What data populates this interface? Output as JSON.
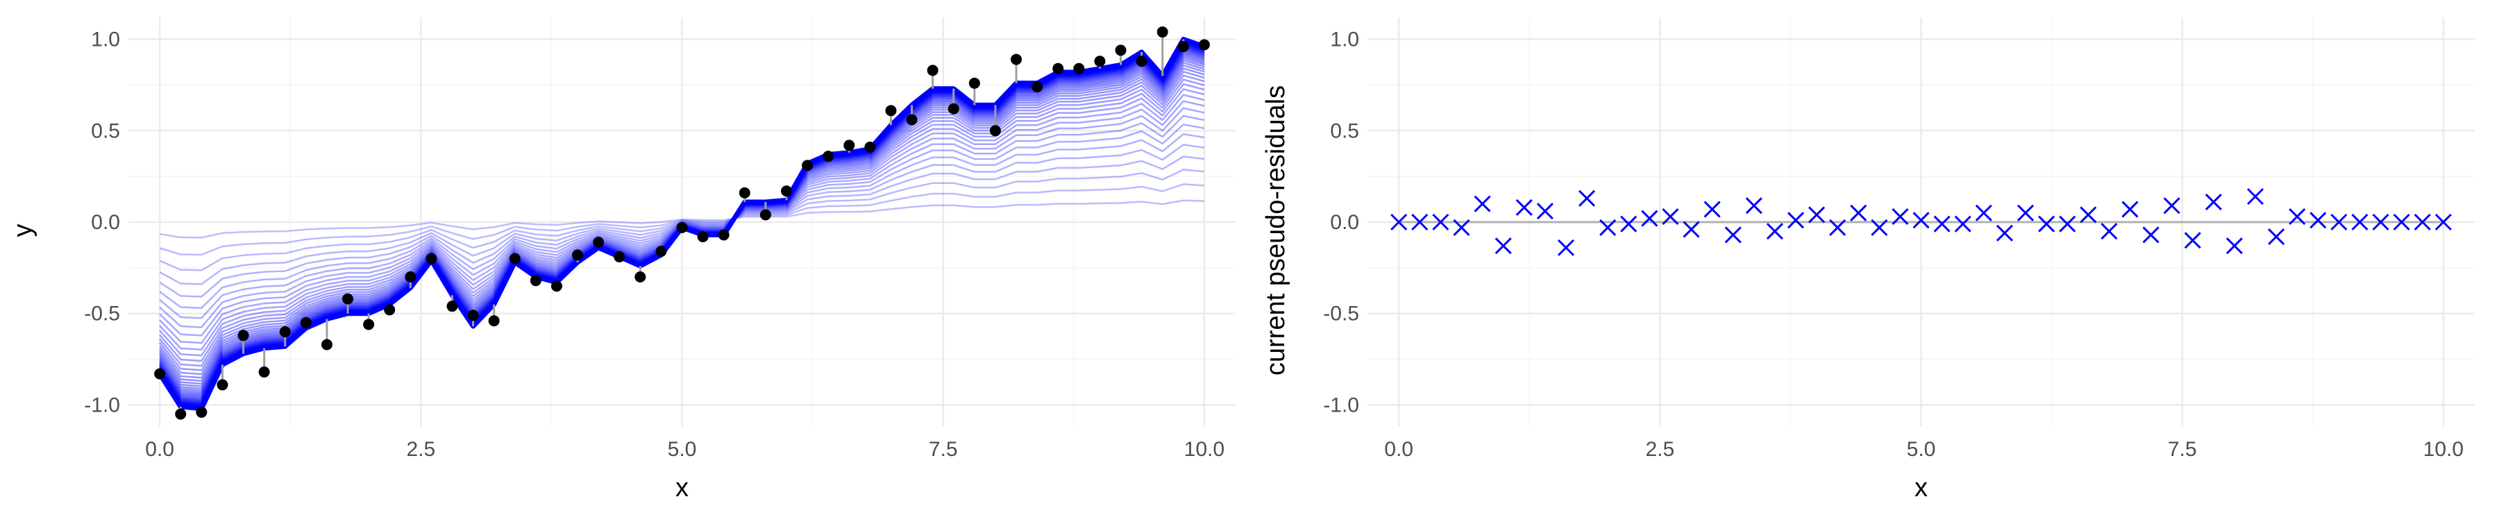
{
  "colors": {
    "background": "#ffffff",
    "grid_major": "#ebebeb",
    "grid_minor": "#f5f5f5",
    "fit_line": "#0000ff",
    "points": "#000000",
    "residual_segment": "#a0a0a0",
    "zero_line": "#b0b0b0",
    "residual_marker": "#0000ff"
  },
  "chart_data": [
    {
      "type": "line",
      "description_of_marks": "black observed points, grey vertical residual segments, blue boosting fit lines from iteration 1 (faint) to final (dark blue, thick)",
      "xlabel": "x",
      "ylabel": "y",
      "xlim": [
        -0.3,
        10.3
      ],
      "ylim": [
        -1.12,
        1.12
      ],
      "xticks": [
        0,
        2.5,
        5,
        7.5,
        10
      ],
      "xtick_labels": [
        "0.0",
        "2.5",
        "5.0",
        "7.5",
        "10.0"
      ],
      "yticks": [
        -1,
        -0.5,
        0,
        0.5,
        1
      ],
      "ytick_labels": [
        "-1.0",
        "-0.5",
        "0.0",
        "0.5",
        "1.0"
      ],
      "grid": true,
      "n_iterations": 50,
      "initial_fit": 0.02,
      "x": [
        0,
        0.2,
        0.4,
        0.6,
        0.8,
        1.0,
        1.2,
        1.4,
        1.6,
        1.8,
        2.0,
        2.2,
        2.4,
        2.6,
        2.8,
        3.0,
        3.2,
        3.4,
        3.6,
        3.8,
        4.0,
        4.2,
        4.4,
        4.6,
        4.8,
        5.0,
        5.2,
        5.4,
        5.6,
        5.8,
        6.0,
        6.2,
        6.4,
        6.6,
        6.8,
        7.0,
        7.2,
        7.4,
        7.6,
        7.8,
        8.0,
        8.2,
        8.4,
        8.6,
        8.8,
        9.0,
        9.2,
        9.4,
        9.6,
        9.8,
        10.0
      ],
      "observed_y": [
        -0.83,
        -1.05,
        -1.04,
        -0.89,
        -0.62,
        -0.82,
        -0.6,
        -0.55,
        -0.67,
        -0.42,
        -0.56,
        -0.48,
        -0.3,
        -0.2,
        -0.46,
        -0.51,
        -0.54,
        -0.2,
        -0.32,
        -0.35,
        -0.18,
        -0.11,
        -0.19,
        -0.3,
        -0.16,
        -0.03,
        -0.08,
        -0.07,
        0.16,
        0.04,
        0.17,
        0.31,
        0.36,
        0.42,
        0.41,
        0.61,
        0.56,
        0.83,
        0.62,
        0.76,
        0.5,
        0.89,
        0.74,
        0.84,
        0.84,
        0.88,
        0.94,
        0.88,
        1.04,
        0.96,
        0.97
      ],
      "final_fit_y": [
        -0.83,
        -1.01,
        -1.02,
        -0.78,
        -0.72,
        -0.69,
        -0.68,
        -0.58,
        -0.53,
        -0.5,
        -0.5,
        -0.45,
        -0.36,
        -0.21,
        -0.4,
        -0.57,
        -0.45,
        -0.22,
        -0.3,
        -0.33,
        -0.22,
        -0.14,
        -0.19,
        -0.24,
        -0.18,
        -0.03,
        -0.07,
        -0.07,
        0.11,
        0.11,
        0.12,
        0.32,
        0.37,
        0.38,
        0.4,
        0.53,
        0.64,
        0.73,
        0.73,
        0.64,
        0.64,
        0.76,
        0.76,
        0.82,
        0.82,
        0.84,
        0.86,
        0.93,
        0.8,
        1.0,
        0.96
      ]
    },
    {
      "type": "scatter",
      "marker": "x",
      "xlabel": "x",
      "ylabel": "current pseudo-residuals",
      "xlim": [
        -0.3,
        10.3
      ],
      "ylim": [
        -1.12,
        1.12
      ],
      "xticks": [
        0,
        2.5,
        5,
        7.5,
        10
      ],
      "xtick_labels": [
        "0.0",
        "2.5",
        "5.0",
        "7.5",
        "10.0"
      ],
      "yticks": [
        -1,
        -0.5,
        0,
        0.5,
        1
      ],
      "ytick_labels": [
        "-1.0",
        "-0.5",
        "0.0",
        "0.5",
        "1.0"
      ],
      "grid": true,
      "reference_line_y": 0,
      "x": [
        0,
        0.2,
        0.4,
        0.6,
        0.8,
        1.0,
        1.2,
        1.4,
        1.6,
        1.8,
        2.0,
        2.2,
        2.4,
        2.6,
        2.8,
        3.0,
        3.2,
        3.4,
        3.6,
        3.8,
        4.0,
        4.2,
        4.4,
        4.6,
        4.8,
        5.0,
        5.2,
        5.4,
        5.6,
        5.8,
        6.0,
        6.2,
        6.4,
        6.6,
        6.8,
        7.0,
        7.2,
        7.4,
        7.6,
        7.8,
        8.0,
        8.2,
        8.4,
        8.6,
        8.8,
        9.0,
        9.2,
        9.4,
        9.6,
        9.8,
        10.0
      ],
      "y": [
        0.0,
        0.0,
        0.0,
        -0.03,
        0.1,
        -0.13,
        0.08,
        0.06,
        -0.14,
        0.13,
        -0.03,
        -0.01,
        0.02,
        0.03,
        -0.04,
        0.07,
        -0.07,
        0.09,
        -0.05,
        0.01,
        0.04,
        -0.03,
        0.05,
        -0.03,
        0.03,
        0.01,
        -0.01,
        -0.01,
        0.05,
        -0.06,
        0.05,
        -0.01,
        -0.01,
        0.04,
        -0.05,
        0.07,
        -0.07,
        0.09,
        -0.1,
        0.11,
        -0.13,
        0.14,
        -0.08,
        0.03,
        0.01,
        0.0,
        0.0,
        0.0,
        0.0,
        0.0,
        0.0
      ]
    }
  ]
}
